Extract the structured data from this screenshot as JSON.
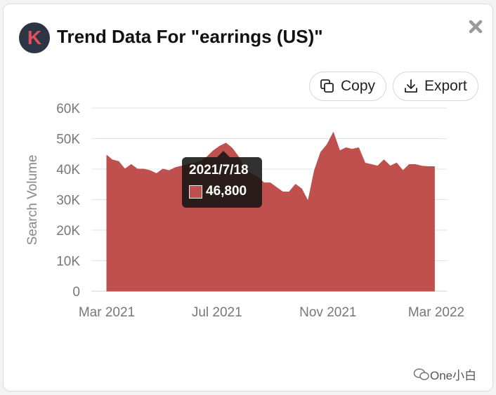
{
  "header": {
    "logo_letter": "K",
    "title": "Trend Data For \"earrings (US)\""
  },
  "toolbar": {
    "copy_label": "Copy",
    "export_label": "Export"
  },
  "tooltip": {
    "date": "2021/7/18",
    "value": "46,800"
  },
  "watermark": "One小白",
  "colors": {
    "area": "#c0504d",
    "logo_bg": "#2c3544",
    "logo_letter": "#e0505b"
  },
  "chart_data": {
    "type": "area",
    "title": "",
    "xlabel": "",
    "ylabel": "Search Volume",
    "ylim": [
      0,
      60000
    ],
    "yticks": [
      0,
      10000,
      20000,
      30000,
      40000,
      50000,
      60000
    ],
    "ytick_labels": [
      "0",
      "10K",
      "20K",
      "30K",
      "40K",
      "50K",
      "60K"
    ],
    "xtick_labels": [
      "Mar 2021",
      "Jul 2021",
      "Nov 2021",
      "Mar 2022"
    ],
    "xticks": [
      "2021-03-01",
      "2021-07-01",
      "2021-11-01",
      "2022-03-01"
    ],
    "grid": true,
    "series": [
      {
        "values": [
          [
            "2021-03-01",
            44500
          ],
          [
            "2021-03-07",
            43000
          ],
          [
            "2021-03-14",
            42500
          ],
          [
            "2021-03-21",
            40000
          ],
          [
            "2021-03-28",
            41500
          ],
          [
            "2021-04-04",
            40000
          ],
          [
            "2021-04-11",
            40000
          ],
          [
            "2021-04-18",
            39500
          ],
          [
            "2021-04-25",
            38500
          ],
          [
            "2021-05-02",
            40000
          ],
          [
            "2021-05-09",
            39500
          ],
          [
            "2021-05-16",
            40500
          ],
          [
            "2021-05-23",
            41000
          ],
          [
            "2021-05-30",
            41500
          ],
          [
            "2021-06-06",
            42000
          ],
          [
            "2021-06-13",
            42500
          ],
          [
            "2021-06-20",
            44000
          ],
          [
            "2021-06-27",
            46000
          ],
          [
            "2021-07-04",
            47500
          ],
          [
            "2021-07-11",
            48500
          ],
          [
            "2021-07-18",
            46800
          ],
          [
            "2021-07-25",
            44000
          ],
          [
            "2021-08-01",
            40000
          ],
          [
            "2021-08-08",
            38500
          ],
          [
            "2021-08-15",
            37500
          ],
          [
            "2021-08-22",
            35500
          ],
          [
            "2021-08-29",
            35500
          ],
          [
            "2021-09-05",
            34000
          ],
          [
            "2021-09-12",
            32500
          ],
          [
            "2021-09-19",
            32500
          ],
          [
            "2021-09-26",
            35000
          ],
          [
            "2021-10-03",
            33500
          ],
          [
            "2021-10-10",
            29500
          ],
          [
            "2021-10-17",
            39500
          ],
          [
            "2021-10-24",
            45500
          ],
          [
            "2021-10-31",
            48000
          ],
          [
            "2021-11-07",
            52000
          ],
          [
            "2021-11-14",
            46000
          ],
          [
            "2021-11-21",
            47000
          ],
          [
            "2021-11-28",
            46500
          ],
          [
            "2021-12-05",
            47000
          ],
          [
            "2021-12-12",
            42000
          ],
          [
            "2021-12-19",
            41500
          ],
          [
            "2021-12-26",
            41000
          ],
          [
            "2022-01-02",
            43000
          ],
          [
            "2022-01-09",
            41000
          ],
          [
            "2022-01-16",
            42000
          ],
          [
            "2022-01-23",
            39500
          ],
          [
            "2022-01-30",
            41500
          ],
          [
            "2022-02-06",
            41500
          ],
          [
            "2022-02-13",
            41000
          ],
          [
            "2022-02-20",
            40800
          ],
          [
            "2022-02-27",
            40800
          ]
        ]
      }
    ]
  }
}
